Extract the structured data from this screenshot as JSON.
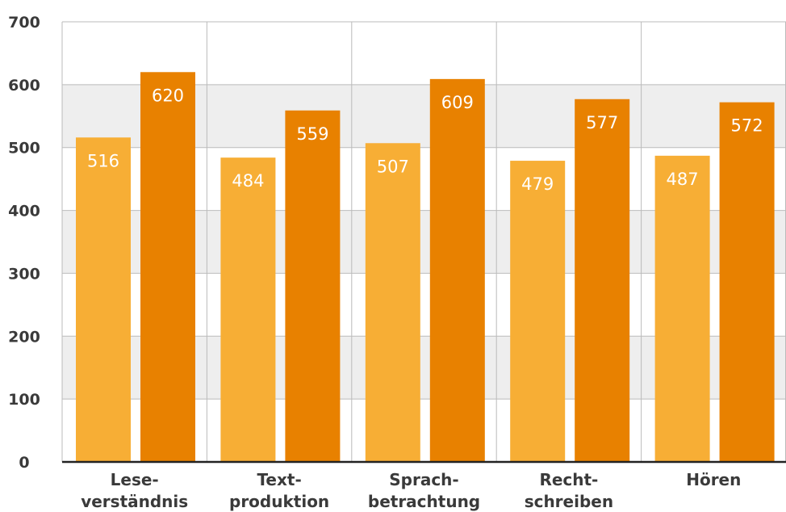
{
  "chart_data": {
    "type": "bar",
    "categories": [
      [
        "Lese-",
        "verständnis"
      ],
      [
        "Text-",
        "produktion"
      ],
      [
        "Sprach-",
        "betrachtung"
      ],
      [
        "Recht-",
        "schreiben"
      ],
      [
        "Hören"
      ]
    ],
    "series": [
      {
        "values": [
          516,
          484,
          507,
          479,
          487
        ],
        "color": "#f7ae35"
      },
      {
        "values": [
          620,
          559,
          609,
          577,
          572
        ],
        "color": "#e88100"
      }
    ],
    "yticks": [
      "0",
      "100",
      "200",
      "300",
      "400",
      "500",
      "600",
      "700"
    ],
    "ylim": [
      0,
      700
    ],
    "grid": true,
    "band_color": "#eeeeee",
    "grid_color": "#bbbbbb",
    "axis_color": "#222222"
  }
}
